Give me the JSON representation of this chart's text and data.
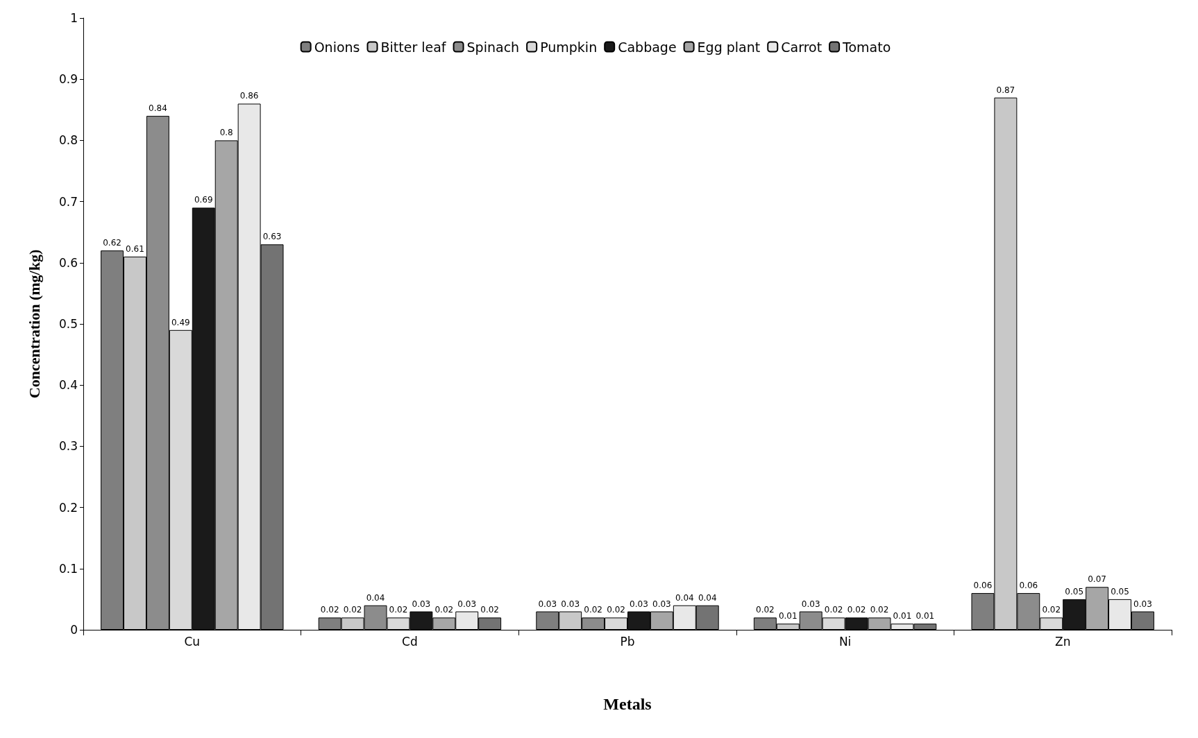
{
  "chart_data": {
    "type": "bar",
    "xlabel": "Metals",
    "ylabel": "Concentration (mg/kg)",
    "categories": [
      "Cu",
      "Cd",
      "Pb",
      "Ni",
      "Zn"
    ],
    "series": [
      {
        "name": "Onions",
        "color": "#7f7f7f",
        "values": [
          0.62,
          0.02,
          0.03,
          0.02,
          0.06
        ]
      },
      {
        "name": "Bitter leaf",
        "color": "#c8c8c8",
        "values": [
          0.61,
          0.02,
          0.03,
          0.01,
          0.87
        ]
      },
      {
        "name": "Spinach",
        "color": "#8c8c8c",
        "values": [
          0.84,
          0.04,
          0.02,
          0.03,
          0.06
        ]
      },
      {
        "name": "Pumpkin",
        "color": "#d9d9d9",
        "values": [
          0.49,
          0.02,
          0.02,
          0.02,
          0.02
        ]
      },
      {
        "name": "Cabbage",
        "color": "#1a1a1a",
        "values": [
          0.69,
          0.03,
          0.03,
          0.02,
          0.05
        ]
      },
      {
        "name": "Egg plant",
        "color": "#a6a6a6",
        "values": [
          0.8,
          0.02,
          0.03,
          0.02,
          0.07
        ]
      },
      {
        "name": "Carrot",
        "color": "#e8e8e8",
        "values": [
          0.86,
          0.03,
          0.04,
          0.01,
          0.05
        ]
      },
      {
        "name": "Tomato",
        "color": "#737373",
        "values": [
          0.63,
          0.02,
          0.04,
          0.01,
          0.03
        ]
      }
    ],
    "ylim": [
      0,
      1
    ],
    "yticks": [
      0,
      0.1,
      0.2,
      0.3,
      0.4,
      0.5,
      0.6,
      0.7,
      0.8,
      0.9,
      1
    ],
    "grid": false,
    "legend": "top",
    "data_labels": true
  }
}
